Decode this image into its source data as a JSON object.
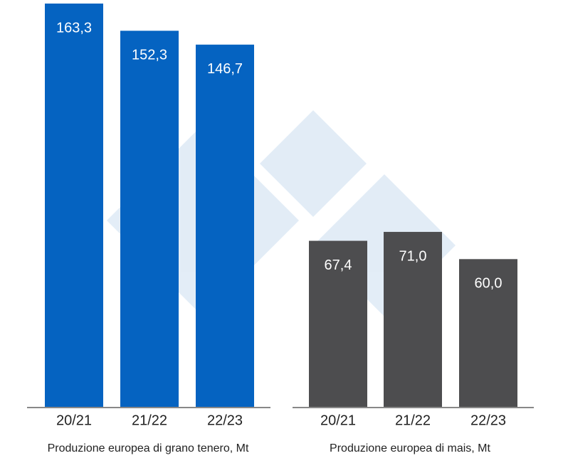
{
  "chart_data": [
    {
      "type": "bar",
      "categories": [
        "20/21",
        "21/22",
        "22/23"
      ],
      "values": [
        163.3,
        152.3,
        146.7
      ],
      "value_labels": [
        "163,3",
        "152,3",
        "146,7"
      ],
      "color": "#0563c1",
      "xlabel": "Produzione europea di grano tenero, Mt"
    },
    {
      "type": "bar",
      "categories": [
        "20/21",
        "21/22",
        "22/23"
      ],
      "values": [
        67.4,
        71.0,
        60.0
      ],
      "value_labels": [
        "67,4",
        "71,0",
        "60,0"
      ],
      "color": "#4d4d4f",
      "xlabel": "Produzione europea di mais, Mt"
    }
  ]
}
